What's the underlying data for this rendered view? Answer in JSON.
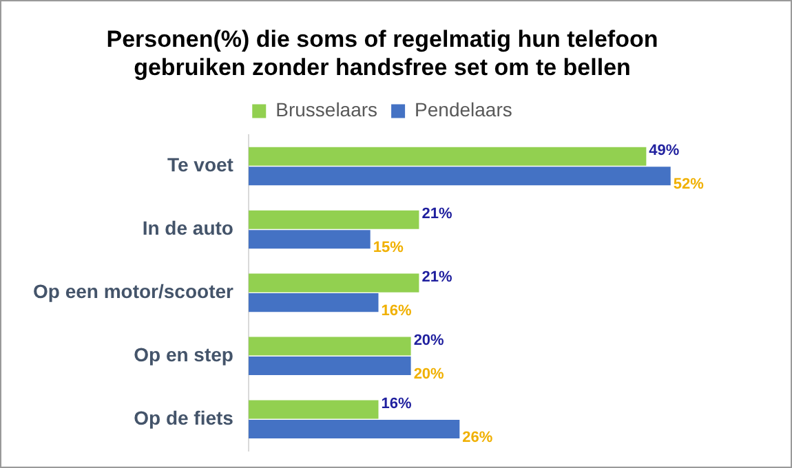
{
  "chart_data": {
    "type": "bar",
    "orientation": "horizontal",
    "title": "Personen(%) die soms of regelmatig hun telefoon\ngebruiken zonder handsfree set om te bellen",
    "categories": [
      "Te voet",
      "In de auto",
      "Op een motor/scooter",
      "Op en step",
      "Op de fiets"
    ],
    "series": [
      {
        "name": "Brusselaars",
        "color": "#92d050",
        "values": [
          49,
          21,
          21,
          20,
          16
        ],
        "value_labels": [
          "49%",
          "21%",
          "21%",
          "20%",
          "16%"
        ]
      },
      {
        "name": "Pendelaars",
        "color": "#4472c4",
        "values": [
          52,
          15,
          16,
          20,
          26
        ],
        "value_labels": [
          "52%",
          "15%",
          "16%",
          "20%",
          "26%"
        ]
      }
    ],
    "legend": "top"
  }
}
